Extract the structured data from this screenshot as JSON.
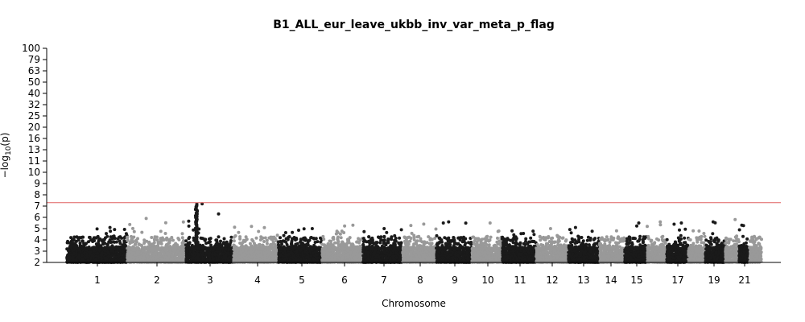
{
  "chart_data": {
    "type": "scatter",
    "title": "B1_ALL_eur_leave_ukbb_inv_var_meta_p_flag",
    "xlabel": "Chromosome",
    "ylabel": "−log10(p)",
    "ylabel_parts": {
      "prefix": "−log",
      "subscript": "10",
      "suffix": "(p)"
    },
    "y_scale": "log-like (compressed above 10)",
    "ylim": [
      2,
      100
    ],
    "y_ticks": [
      "2",
      "3",
      "4",
      "5",
      "6",
      "7",
      "8",
      "9",
      "10",
      "11",
      "13",
      "16",
      "20",
      "25",
      "32",
      "40",
      "50",
      "63",
      "79",
      "100"
    ],
    "x_tick_labels": [
      "1",
      "2",
      "3",
      "4",
      "5",
      "6",
      "7",
      "8",
      "9",
      "10",
      "11",
      "12",
      "13",
      "14",
      "15",
      "17",
      "19",
      "21"
    ],
    "chromosomes": [
      {
        "chr": "1",
        "peak": 5.1,
        "color": "#1a1a1a"
      },
      {
        "chr": "2",
        "peak": 5.9,
        "color": "#999999"
      },
      {
        "chr": "3",
        "peak": 7.2,
        "color": "#1a1a1a"
      },
      {
        "chr": "4",
        "peak": 5.2,
        "color": "#999999"
      },
      {
        "chr": "5",
        "peak": 5.0,
        "color": "#1a1a1a"
      },
      {
        "chr": "6",
        "peak": 5.3,
        "color": "#999999"
      },
      {
        "chr": "7",
        "peak": 5.0,
        "color": "#1a1a1a"
      },
      {
        "chr": "8",
        "peak": 5.4,
        "color": "#999999"
      },
      {
        "chr": "9",
        "peak": 5.6,
        "color": "#1a1a1a"
      },
      {
        "chr": "10",
        "peak": 5.5,
        "color": "#999999"
      },
      {
        "chr": "11",
        "peak": 4.8,
        "color": "#1a1a1a"
      },
      {
        "chr": "12",
        "peak": 5.0,
        "color": "#999999"
      },
      {
        "chr": "13",
        "peak": 5.1,
        "color": "#1a1a1a"
      },
      {
        "chr": "14",
        "peak": 4.8,
        "color": "#999999"
      },
      {
        "chr": "15",
        "peak": 5.5,
        "color": "#1a1a1a"
      },
      {
        "chr": "16",
        "peak": 5.6,
        "color": "#999999"
      },
      {
        "chr": "17",
        "peak": 5.5,
        "color": "#1a1a1a"
      },
      {
        "chr": "18",
        "peak": 4.8,
        "color": "#999999"
      },
      {
        "chr": "19",
        "peak": 5.6,
        "color": "#1a1a1a"
      },
      {
        "chr": "20",
        "peak": 5.8,
        "color": "#999999"
      },
      {
        "chr": "21",
        "peak": 5.3,
        "color": "#1a1a1a"
      },
      {
        "chr": "22",
        "peak": 4.3,
        "color": "#999999"
      }
    ],
    "significance_line": {
      "y": 7.3,
      "color": "#e06060"
    },
    "colors": {
      "dark": "#1a1a1a",
      "light": "#999999"
    },
    "grid": false
  }
}
